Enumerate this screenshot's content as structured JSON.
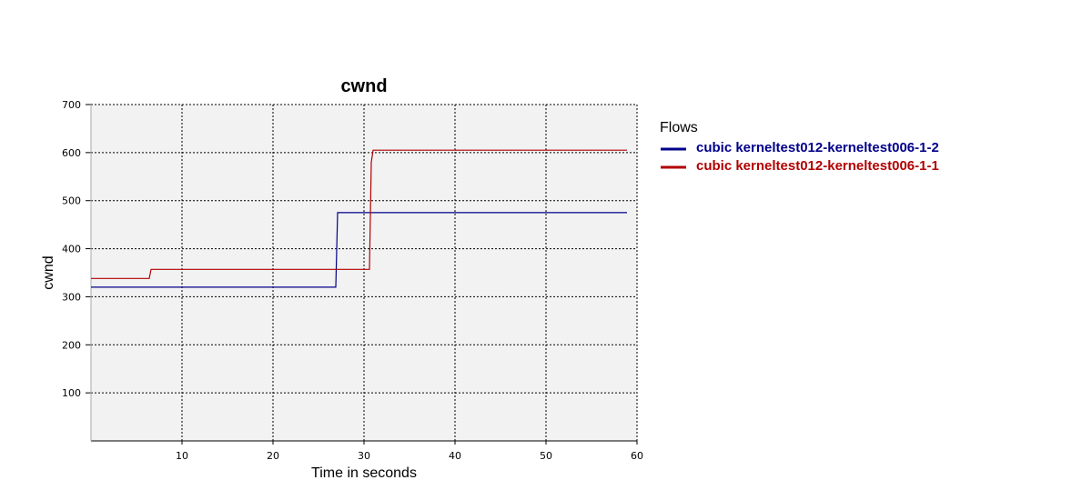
{
  "chart_data": {
    "type": "line",
    "title": "cwnd",
    "xlabel": "Time in seconds",
    "ylabel": "cwnd",
    "xlim": [
      0,
      60
    ],
    "ylim": [
      0,
      700
    ],
    "x_ticks": [
      10,
      20,
      30,
      40,
      50,
      60
    ],
    "y_ticks": [
      100,
      200,
      300,
      400,
      500,
      600,
      700
    ],
    "grid": true,
    "line_style": "step",
    "legend": {
      "title": "Flows",
      "placement": "right"
    },
    "series": [
      {
        "name": "cubic kerneltest012-kerneltest006-1-2",
        "color": "#00008b",
        "points": [
          [
            0,
            320
          ],
          [
            26.9,
            320
          ],
          [
            27.1,
            475
          ],
          [
            58.9,
            475
          ]
        ]
      },
      {
        "name": "cubic kerneltest012-kerneltest006-1-1",
        "color": "#b20000",
        "points": [
          [
            0,
            338
          ],
          [
            6.4,
            338
          ],
          [
            6.6,
            357
          ],
          [
            30.6,
            357
          ],
          [
            30.8,
            580
          ],
          [
            31.0,
            605
          ],
          [
            58.9,
            605
          ]
        ]
      }
    ]
  }
}
